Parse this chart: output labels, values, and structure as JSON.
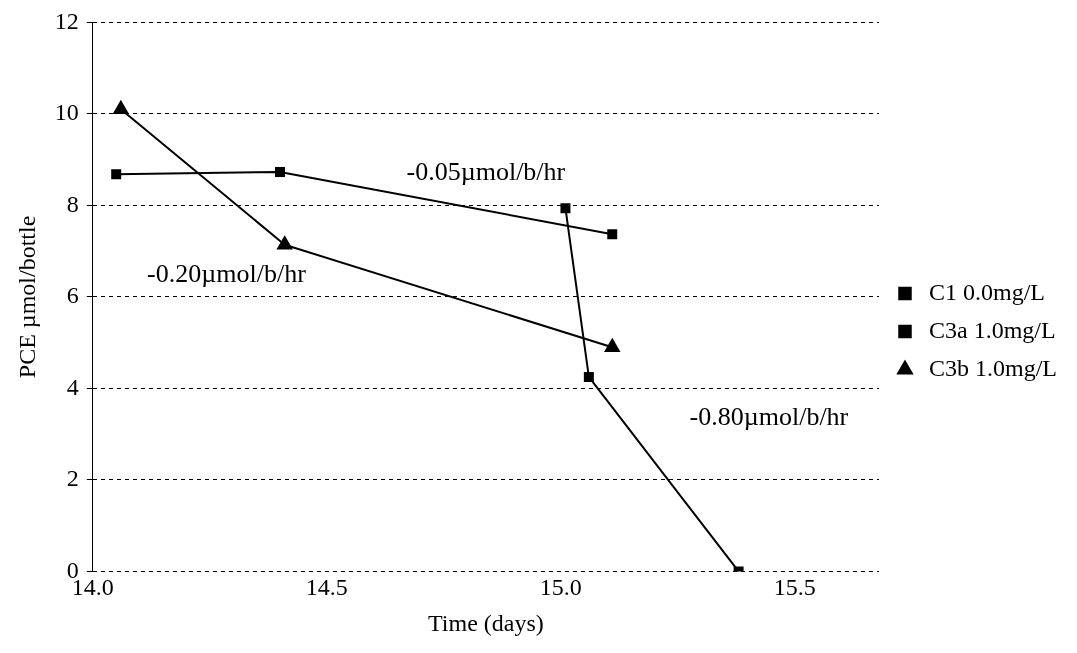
{
  "chart_data": {
    "type": "line",
    "xlabel": "Time (days)",
    "ylabel": "PCE µmol/bottle",
    "xlim": [
      14.0,
      15.68
    ],
    "xticks": [
      {
        "value": 14.0,
        "label": "14.0"
      },
      {
        "value": 14.5,
        "label": "14.5"
      },
      {
        "value": 15.0,
        "label": "15.0"
      },
      {
        "value": 15.5,
        "label": "15.5"
      }
    ],
    "ylim": [
      0,
      12
    ],
    "yticks": [
      0,
      2,
      4,
      6,
      8,
      10,
      12
    ],
    "grid": "y",
    "legend": "right",
    "line_style": "solid",
    "series": [
      {
        "name": "C1 0.0mg/L",
        "color": "#000000",
        "marker": "square",
        "x": [
          15.01,
          15.06,
          15.38
        ],
        "values": [
          7.94,
          4.25,
          0.0
        ]
      },
      {
        "name": "C3a 1.0mg/L",
        "color": "#000000",
        "marker": "square",
        "x": [
          14.05,
          14.4,
          15.11
        ],
        "values": [
          8.68,
          8.73,
          7.37
        ]
      },
      {
        "name": "C3b 1.0mg/L",
        "color": "#000000",
        "marker": "triangle",
        "x": [
          14.06,
          14.41,
          15.11
        ],
        "values": [
          10.1,
          7.14,
          4.9
        ]
      }
    ],
    "annotations": [
      "-0.05µmol/b/hr",
      "-0.20µmol/b/hr",
      "-0.80µmol/b/hr"
    ]
  }
}
